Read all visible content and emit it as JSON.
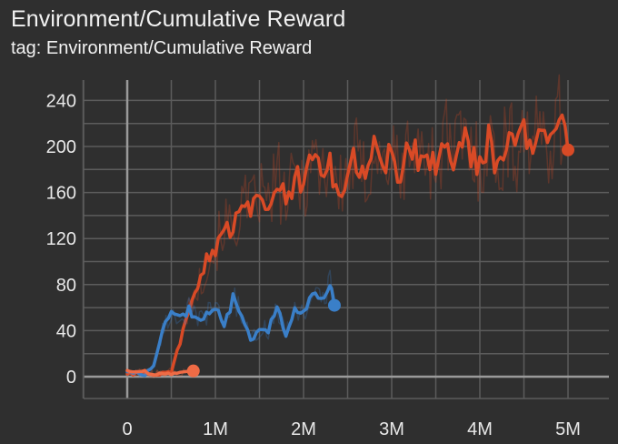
{
  "title": "Environment/Cumulative Reward",
  "subtitle": "tag: Environment/Cumulative Reward",
  "colors": {
    "background": "#2f2f2f",
    "grid": "#5c5c5c",
    "axis": "#9a9a9a",
    "text": "#e8e8e8",
    "series_orange": "#d94a26",
    "series_blue": "#3a7fc8",
    "series_light_orange": "#ef6b45"
  },
  "chart_data": {
    "type": "line",
    "title": "Environment/Cumulative Reward",
    "subtitle": "tag: Environment/Cumulative Reward",
    "xlabel": "",
    "ylabel": "",
    "xlim": [
      -0.5,
      5.45
    ],
    "ylim": [
      -20,
      250
    ],
    "x_ticks": [
      0,
      1,
      2,
      3,
      4,
      5
    ],
    "x_tick_labels": [
      "0",
      "1M",
      "2M",
      "3M",
      "4M",
      "5M"
    ],
    "y_ticks": [
      0,
      40,
      80,
      120,
      160,
      200,
      240
    ],
    "y_tick_labels": [
      "0",
      "40",
      "80",
      "120",
      "160",
      "200",
      "240"
    ],
    "grid": true,
    "legend": "none",
    "series": [
      {
        "color": "#d94a26",
        "end_marker": true,
        "x": [
          0,
          0.1,
          0.2,
          0.3,
          0.4,
          0.5,
          0.6,
          0.7,
          0.8,
          0.9,
          1.0,
          1.1,
          1.2,
          1.3,
          1.4,
          1.5,
          1.6,
          1.7,
          1.8,
          1.9,
          2.0,
          2.1,
          2.2,
          2.3,
          2.4,
          2.5,
          2.6,
          2.7,
          2.8,
          2.9,
          3.0,
          3.1,
          3.2,
          3.3,
          3.4,
          3.5,
          3.6,
          3.7,
          3.8,
          3.9,
          4.0,
          4.1,
          4.2,
          4.3,
          4.4,
          4.5,
          4.6,
          4.7,
          4.8,
          4.9,
          5.0
        ],
        "y": [
          2,
          3,
          4,
          2,
          3,
          5,
          30,
          60,
          75,
          100,
          110,
          135,
          125,
          150,
          145,
          160,
          148,
          175,
          150,
          172,
          168,
          195,
          180,
          185,
          160,
          178,
          190,
          170,
          200,
          180,
          195,
          168,
          205,
          190,
          200,
          178,
          212,
          192,
          208,
          195,
          185,
          208,
          178,
          210,
          192,
          220,
          198,
          212,
          205,
          225,
          197
        ]
      },
      {
        "color": "#3a7fc8",
        "end_marker": true,
        "x": [
          0,
          0.1,
          0.2,
          0.3,
          0.4,
          0.5,
          0.6,
          0.7,
          0.8,
          0.9,
          1.0,
          1.1,
          1.2,
          1.3,
          1.4,
          1.5,
          1.6,
          1.7,
          1.8,
          1.9,
          2.0,
          2.1,
          2.2,
          2.3,
          2.35
        ],
        "y": [
          4,
          3,
          2,
          10,
          40,
          55,
          50,
          58,
          48,
          55,
          60,
          45,
          68,
          55,
          30,
          42,
          40,
          60,
          35,
          60,
          55,
          72,
          65,
          80,
          62
        ]
      },
      {
        "color": "#ef6b45",
        "end_marker": true,
        "x": [
          0,
          0.1,
          0.2,
          0.3,
          0.4,
          0.5,
          0.6,
          0.7,
          0.75
        ],
        "y": [
          5,
          3,
          4,
          2,
          3,
          2,
          3,
          4,
          5
        ]
      }
    ]
  }
}
